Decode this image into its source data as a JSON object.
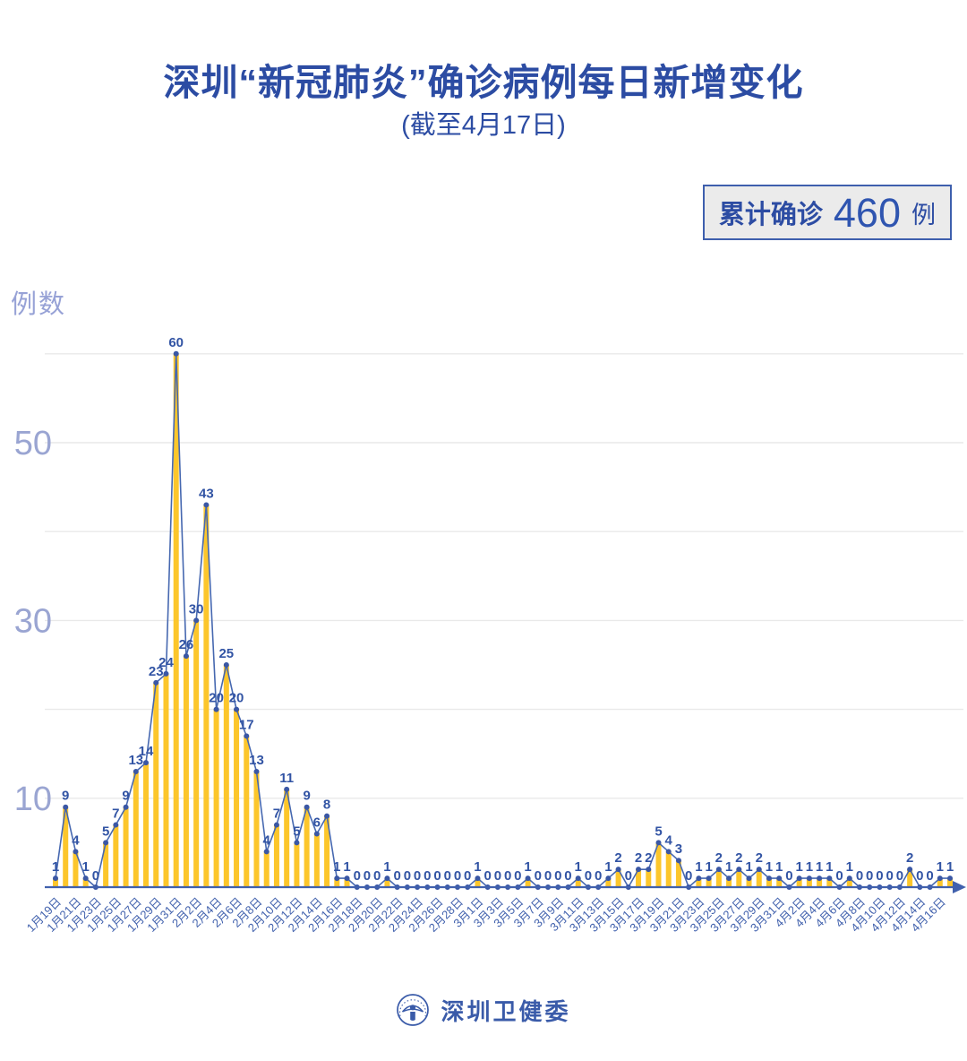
{
  "title": "深圳“新冠肺炎”确诊病例每日新增变化",
  "subtitle": "(截至4月17日)",
  "badge": {
    "prefix": "累计确诊",
    "value": "460",
    "suffix": "例"
  },
  "y_axis_label": "例数",
  "footer": {
    "org": "深圳卫健委",
    "logo": "shenzhen-health-commission-emblem"
  },
  "colors": {
    "title_blue": "#2c4ca3",
    "bar_yellow": "#fcc62b",
    "line_blue": "#4668b0",
    "dot_blue": "#3a57a5",
    "value_label_blue": "#3254a4",
    "x_label_blue": "#4161ad",
    "y_tick_gray_blue": "#9aa5d2",
    "gridline": "#e9e9e9",
    "axis_blue": "#4161ad",
    "badge_bg": "#ebebeb"
  },
  "chart_data": {
    "type": "bar",
    "line_overlay": true,
    "title": "深圳“新冠肺炎”确诊病例每日新增变化",
    "subtitle": "(截至4月17日)",
    "xlabel": "",
    "ylabel": "例数",
    "ylim": [
      0,
      62
    ],
    "grid": true,
    "gridlines": [
      10,
      20,
      30,
      40,
      50,
      60
    ],
    "y_ticks_labeled": [
      10,
      30,
      50
    ],
    "x_start": "1月19日",
    "x_end": "4月17日",
    "x_tick_labels": [
      "1月19日",
      "1月21日",
      "1月23日",
      "1月25日",
      "1月27日",
      "1月29日",
      "1月31日",
      "2月2日",
      "2月4日",
      "2月6日",
      "2月8日",
      "2月10日",
      "2月12日",
      "2月14日",
      "2月16日",
      "2月18日",
      "2月20日",
      "2月22日",
      "2月24日",
      "2月26日",
      "2月28日",
      "3月1日",
      "3月3日",
      "3月5日",
      "3月7日",
      "3月9日",
      "3月11日",
      "3月13日",
      "3月15日",
      "3月17日",
      "3月19日",
      "3月21日",
      "3月23日",
      "3月25日",
      "3月27日",
      "3月29日",
      "3月31日",
      "4月2日",
      "4月4日",
      "4月6日",
      "4月8日",
      "4月10日",
      "4月12日",
      "4月14日",
      "4月16日"
    ],
    "values": [
      1,
      9,
      4,
      1,
      0,
      5,
      7,
      9,
      13,
      14,
      23,
      24,
      60,
      26,
      30,
      43,
      20,
      25,
      20,
      17,
      13,
      4,
      7,
      11,
      5,
      9,
      6,
      8,
      1,
      1,
      0,
      0,
      0,
      1,
      0,
      0,
      0,
      0,
      0,
      0,
      0,
      0,
      1,
      0,
      0,
      0,
      0,
      1,
      0,
      0,
      0,
      0,
      1,
      0,
      0,
      1,
      2,
      0,
      2,
      2,
      5,
      4,
      3,
      0,
      1,
      1,
      2,
      1,
      2,
      1,
      2,
      1,
      1,
      0,
      1,
      1,
      1,
      1,
      0,
      1,
      0,
      0,
      0,
      0,
      0,
      2,
      0,
      0,
      1,
      1
    ],
    "cumulative_total": 460
  }
}
